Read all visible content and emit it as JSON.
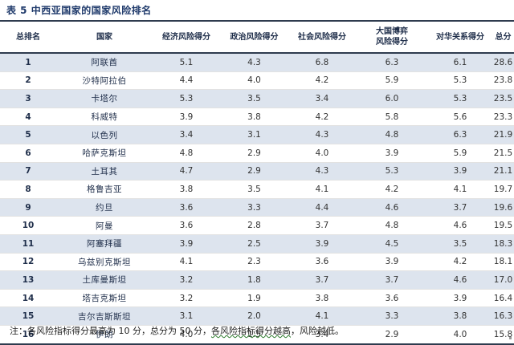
{
  "title": "表 5   中西亚国家的国家风险排名",
  "table": {
    "headers": [
      "总排名",
      "国家",
      "经济风险得分",
      "政治风险得分",
      "社会风险得分",
      "大国博弈\n风险得分",
      "对华关系得分",
      "总分"
    ],
    "rows": [
      [
        "1",
        "阿联酋",
        "5.1",
        "4.3",
        "6.8",
        "6.3",
        "6.1",
        "28.6"
      ],
      [
        "2",
        "沙特阿拉伯",
        "4.4",
        "4.0",
        "4.2",
        "5.9",
        "5.3",
        "23.8"
      ],
      [
        "3",
        "卡塔尔",
        "5.3",
        "3.5",
        "3.4",
        "6.0",
        "5.3",
        "23.5"
      ],
      [
        "4",
        "科威特",
        "3.9",
        "3.8",
        "4.2",
        "5.8",
        "5.6",
        "23.3"
      ],
      [
        "5",
        "以色列",
        "3.4",
        "3.1",
        "4.3",
        "4.8",
        "6.3",
        "21.9"
      ],
      [
        "6",
        "哈萨克斯坦",
        "4.8",
        "2.9",
        "4.0",
        "3.9",
        "5.9",
        "21.5"
      ],
      [
        "7",
        "土耳其",
        "4.7",
        "2.9",
        "4.3",
        "5.3",
        "3.9",
        "21.1"
      ],
      [
        "8",
        "格鲁吉亚",
        "3.8",
        "3.5",
        "4.1",
        "4.2",
        "4.1",
        "19.7"
      ],
      [
        "9",
        "约旦",
        "3.6",
        "3.3",
        "4.4",
        "4.6",
        "3.7",
        "19.6"
      ],
      [
        "10",
        "阿曼",
        "3.6",
        "2.8",
        "3.7",
        "4.8",
        "4.6",
        "19.5"
      ],
      [
        "11",
        "阿塞拜疆",
        "3.9",
        "2.5",
        "3.9",
        "4.5",
        "3.5",
        "18.3"
      ],
      [
        "12",
        "乌兹别克斯坦",
        "4.1",
        "2.3",
        "3.6",
        "3.9",
        "4.2",
        "18.1"
      ],
      [
        "13",
        "土库曼斯坦",
        "3.2",
        "1.8",
        "3.7",
        "3.7",
        "4.6",
        "17.0"
      ],
      [
        "14",
        "塔吉克斯坦",
        "3.2",
        "1.9",
        "3.8",
        "3.6",
        "3.9",
        "16.4"
      ],
      [
        "15",
        "吉尔吉斯斯坦",
        "3.1",
        "2.0",
        "4.1",
        "3.3",
        "3.8",
        "16.3"
      ],
      [
        "16",
        "伊朗",
        "4.0",
        "1.5",
        "3.4",
        "2.9",
        "4.0",
        "15.8"
      ]
    ]
  },
  "note": {
    "prefix": "注：各风险指标得分最高为 10 分，总分为 50 分，",
    "underlined": "各风险指标得分越高",
    "suffix": "，风险越低。"
  }
}
